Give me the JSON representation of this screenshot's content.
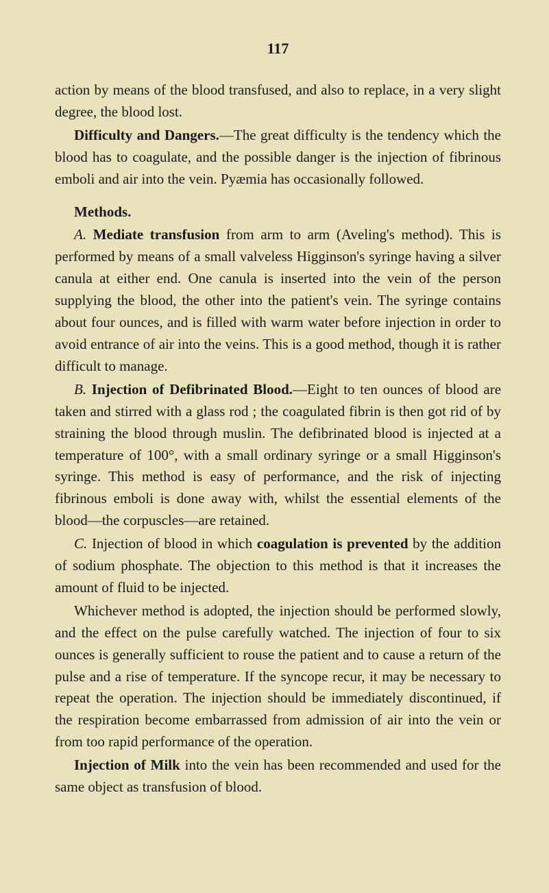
{
  "page": {
    "number": "117",
    "background_color": "#e8e3bd",
    "text_color": "#1a1a1a",
    "font_family": "Georgia, 'Times New Roman', serif",
    "body_fontsize": 21,
    "line_height": 1.52
  },
  "paragraphs": {
    "p1": {
      "text": "action by means of the blood transfused, and also to replace, in a very slight degree, the blood lost."
    },
    "p2": {
      "bold_lead": "Difficulty and Dangers.",
      "text": "—The great difficulty is the tendency which the blood has to coagulate, and the possible danger is the injection of fibrinous emboli and air into the vein. Pyæmia has occasionally followed."
    },
    "heading_methods": "Methods.",
    "p3": {
      "italic_lead": "A. ",
      "bold_lead": "Mediate transfusion",
      "text": " from arm to arm (Aveling's method). This is performed by means of a small valveless Higginson's syringe having a silver canula at either end. One canula is inserted into the vein of the person supplying the blood, the other into the patient's vein. The syringe contains about four ounces, and is filled with warm water before injection in order to avoid entrance of air into the veins. This is a good method, though it is rather difficult to manage."
    },
    "p4": {
      "italic_lead": "B. ",
      "bold_lead": "Injection of Defibrinated Blood.",
      "text": "—Eight to ten ounces of blood are taken and stirred with a glass rod ; the coagulated fibrin is then got rid of by straining the blood through muslin. The defibrinated blood is injected at a temperature of 100°, with a small ordinary syringe or a small Higginson's syringe. This method is easy of performance, and the risk of injecting fibrinous emboli is done away with, whilst the essential elements of the blood—the corpuscles—are retained."
    },
    "p5": {
      "italic_lead": "C. ",
      "text_before": "Injection of blood in which ",
      "bold_mid": "coagulation is prevented",
      "text_after": " by the addition of sodium phosphate. The objection to this method is that it increases the amount of fluid to be injected."
    },
    "p6": {
      "text": "Whichever method is adopted, the injection should be performed slowly, and the effect on the pulse carefully watched. The injection of four to six ounces is generally sufficient to rouse the patient and to cause a return of the pulse and a rise of temperature. If the syncope recur, it may be necessary to repeat the operation. The injection should be immediately discontinued, if the respiration become embarrassed from admission of air into the vein or from too rapid performance of the operation."
    },
    "p7": {
      "bold_lead": "Injection of Milk",
      "text": " into the vein has been recommended and used for the same object as transfusion of blood."
    }
  }
}
